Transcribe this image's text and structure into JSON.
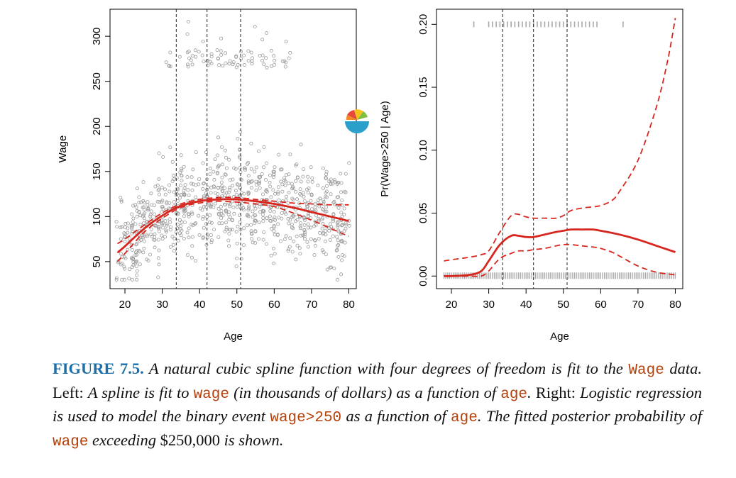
{
  "chart_data": [
    {
      "type": "scatter",
      "xlabel": "Age",
      "ylabel": "Wage",
      "xlim": [
        16,
        82
      ],
      "ylim": [
        20,
        330
      ],
      "x_ticks": [
        20,
        30,
        40,
        50,
        60,
        70,
        80
      ],
      "y_ticks": [
        50,
        100,
        150,
        200,
        250,
        300
      ],
      "knots": [
        33.75,
        42,
        51
      ],
      "points_color": "#9a9a9a",
      "fit_color": "#d7261e",
      "series": [
        {
          "kind": "fit",
          "x": [
            18,
            20,
            25,
            30,
            35,
            40,
            45,
            50,
            55,
            60,
            65,
            70,
            75,
            80
          ],
          "values": [
            60,
            67,
            86,
            101,
            112,
            117,
            119,
            119,
            117,
            114,
            110,
            105,
            100,
            95
          ]
        },
        {
          "kind": "upper-band",
          "x": [
            18,
            20,
            25,
            30,
            35,
            40,
            45,
            50,
            55,
            60,
            65,
            70,
            75,
            80
          ],
          "values": [
            70,
            75,
            90,
            104,
            114,
            119,
            121,
            121,
            119,
            117,
            115,
            114,
            113,
            113
          ]
        },
        {
          "kind": "lower-band",
          "x": [
            18,
            20,
            25,
            30,
            35,
            40,
            45,
            50,
            55,
            60,
            65,
            70,
            75,
            80
          ],
          "values": [
            50,
            59,
            82,
            98,
            110,
            115,
            117,
            116,
            114,
            111,
            104,
            96,
            87,
            78
          ]
        }
      ],
      "scatter_groups": [
        {
          "x_range": [
            18,
            80
          ],
          "y_range": [
            40,
            200
          ],
          "count": 900
        },
        {
          "x_range": [
            30,
            65
          ],
          "y_range": [
            265,
            285
          ],
          "count": 70
        },
        {
          "x_range": [
            35,
            65
          ],
          "y_range": [
            290,
            320
          ],
          "count": 8
        }
      ]
    },
    {
      "type": "line",
      "xlabel": "Age",
      "ylabel": "Pr(Wage>250 | Age)",
      "xlim": [
        16,
        82
      ],
      "ylim": [
        -0.01,
        0.212
      ],
      "x_ticks": [
        20,
        30,
        40,
        50,
        60,
        70,
        80
      ],
      "y_ticks": [
        "0.00",
        "0.05",
        "0.10",
        "0.15",
        "0.20"
      ],
      "knots": [
        33.75,
        42,
        51
      ],
      "rug_top": {
        "y": 0.2,
        "x_range": [
          26,
          66
        ]
      },
      "rug_bottom": {
        "y": 0.0,
        "x_range": [
          18,
          80
        ]
      },
      "series": [
        {
          "kind": "fit",
          "x": [
            18,
            20,
            25,
            28,
            30,
            33,
            36,
            38,
            40,
            42,
            45,
            48,
            50,
            52,
            55,
            58,
            60,
            65,
            70,
            75,
            80
          ],
          "values": [
            0.0,
            0.0,
            0.001,
            0.004,
            0.012,
            0.025,
            0.032,
            0.032,
            0.031,
            0.031,
            0.033,
            0.035,
            0.036,
            0.037,
            0.037,
            0.037,
            0.036,
            0.033,
            0.029,
            0.024,
            0.019
          ]
        },
        {
          "kind": "upper-band",
          "x": [
            18,
            20,
            25,
            28,
            30,
            33,
            36,
            38,
            40,
            42,
            45,
            48,
            50,
            52,
            55,
            58,
            60,
            63,
            65,
            70,
            75,
            78,
            80
          ],
          "values": [
            0.012,
            0.013,
            0.015,
            0.017,
            0.02,
            0.035,
            0.048,
            0.049,
            0.047,
            0.046,
            0.046,
            0.046,
            0.048,
            0.052,
            0.054,
            0.055,
            0.056,
            0.06,
            0.067,
            0.092,
            0.135,
            0.172,
            0.205
          ]
        },
        {
          "kind": "lower-band",
          "x": [
            18,
            20,
            25,
            28,
            30,
            33,
            36,
            38,
            40,
            42,
            45,
            48,
            50,
            52,
            55,
            58,
            60,
            63,
            65,
            70,
            75,
            80
          ],
          "values": [
            0.0,
            0.0,
            0.0,
            0.0,
            0.004,
            0.014,
            0.018,
            0.02,
            0.02,
            0.021,
            0.022,
            0.024,
            0.025,
            0.025,
            0.024,
            0.023,
            0.022,
            0.019,
            0.016,
            0.008,
            0.003,
            0.001
          ]
        }
      ]
    }
  ],
  "caption": {
    "label": "FIGURE 7.5.",
    "p1": " A natural cubic spline function with four degrees of freedom is fit to the ",
    "c1": "Wage",
    "p2": " data.",
    "p3": " Left: ",
    "p4": "A spline is fit to ",
    "c2": "wage",
    "p5": " (in thousands of dollars) as a function of ",
    "c3": "age",
    "p6": ".",
    "p7": " Right: ",
    "p8": "Logistic regression is used to model the binary event ",
    "c4": "wage>250",
    "p9": " as a function of ",
    "c5": "age",
    "p10": ". The fitted posterior probability of ",
    "c6": "wage",
    "p11": " exceeding ",
    "p12": "$250,000",
    "p13": " is shown."
  },
  "badge": {
    "icon": "pie-chart-bowl-icon",
    "colors": [
      "#e8473d",
      "#f5c21b",
      "#2a9fc9",
      "#7fbf3f"
    ]
  }
}
